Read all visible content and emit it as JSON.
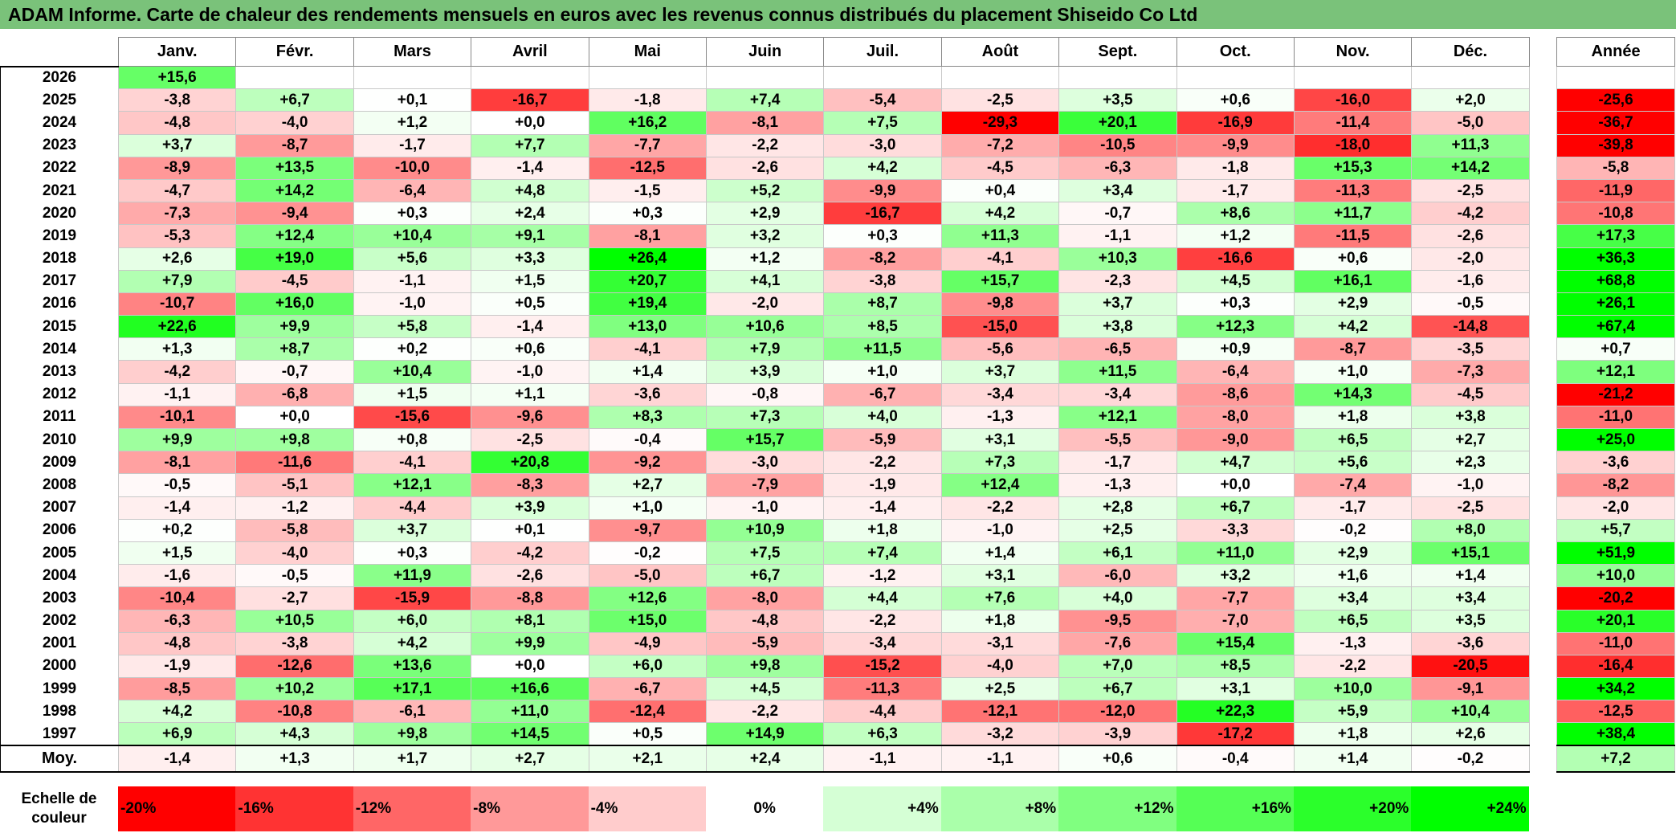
{
  "title": "ADAM Informe. Carte de chaleur des rendements mensuels en euros avec les revenus connus distribués du placement Shiseido Co Ltd",
  "chart_data": {
    "type": "heatmap",
    "title": "ADAM Informe. Carte de chaleur des rendements mensuels en euros avec les revenus connus distribués du placement Shiseido Co Ltd",
    "columns": [
      "Janv.",
      "Févr.",
      "Mars",
      "Avril",
      "Mai",
      "Juin",
      "Juil.",
      "Août",
      "Sept.",
      "Oct.",
      "Nov.",
      "Déc."
    ],
    "annual_header": "Année",
    "rows": [
      {
        "year": "2026",
        "values": [
          "+15,6",
          "",
          "",
          "",
          "",
          "",
          "",
          "",
          "",
          "",
          "",
          ""
        ],
        "annual": ""
      },
      {
        "year": "2025",
        "values": [
          "-3,8",
          "+6,7",
          "+0,1",
          "-16,7",
          "-1,8",
          "+7,4",
          "-5,4",
          "-2,5",
          "+3,5",
          "+0,6",
          "-16,0",
          "+2,0"
        ],
        "annual": "-25,6"
      },
      {
        "year": "2024",
        "values": [
          "-4,8",
          "-4,0",
          "+1,2",
          "+0,0",
          "+16,2",
          "-8,1",
          "+7,5",
          "-29,3",
          "+20,1",
          "-16,9",
          "-11,4",
          "-5,0"
        ],
        "annual": "-36,7"
      },
      {
        "year": "2023",
        "values": [
          "+3,7",
          "-8,7",
          "-1,7",
          "+7,7",
          "-7,7",
          "-2,2",
          "-3,0",
          "-7,2",
          "-10,5",
          "-9,9",
          "-18,0",
          "+11,3"
        ],
        "annual": "-39,8"
      },
      {
        "year": "2022",
        "values": [
          "-8,9",
          "+13,5",
          "-10,0",
          "-1,4",
          "-12,5",
          "-2,6",
          "+4,2",
          "-4,5",
          "-6,3",
          "-1,8",
          "+15,3",
          "+14,2"
        ],
        "annual": "-5,8"
      },
      {
        "year": "2021",
        "values": [
          "-4,7",
          "+14,2",
          "-6,4",
          "+4,8",
          "-1,5",
          "+5,2",
          "-9,9",
          "+0,4",
          "+3,4",
          "-1,7",
          "-11,3",
          "-2,5"
        ],
        "annual": "-11,9"
      },
      {
        "year": "2020",
        "values": [
          "-7,3",
          "-9,4",
          "+0,3",
          "+2,4",
          "+0,3",
          "+2,9",
          "-16,7",
          "+4,2",
          "-0,7",
          "+8,6",
          "+11,7",
          "-4,2"
        ],
        "annual": "-10,8"
      },
      {
        "year": "2019",
        "values": [
          "-5,3",
          "+12,4",
          "+10,4",
          "+9,1",
          "-8,1",
          "+3,2",
          "+0,3",
          "+11,3",
          "-1,1",
          "+1,2",
          "-11,5",
          "-2,6"
        ],
        "annual": "+17,3"
      },
      {
        "year": "2018",
        "values": [
          "+2,6",
          "+19,0",
          "+5,6",
          "+3,3",
          "+26,4",
          "+1,2",
          "-8,2",
          "-4,1",
          "+10,3",
          "-16,6",
          "+0,6",
          "-2,0"
        ],
        "annual": "+36,3"
      },
      {
        "year": "2017",
        "values": [
          "+7,9",
          "-4,5",
          "-1,1",
          "+1,5",
          "+20,7",
          "+4,1",
          "-3,8",
          "+15,7",
          "-2,3",
          "+4,5",
          "+16,1",
          "-1,6"
        ],
        "annual": "+68,8"
      },
      {
        "year": "2016",
        "values": [
          "-10,7",
          "+16,0",
          "-1,0",
          "+0,5",
          "+19,4",
          "-2,0",
          "+8,7",
          "-9,8",
          "+3,7",
          "+0,3",
          "+2,9",
          "-0,5"
        ],
        "annual": "+26,1"
      },
      {
        "year": "2015",
        "values": [
          "+22,6",
          "+9,9",
          "+5,8",
          "-1,4",
          "+13,0",
          "+10,6",
          "+8,5",
          "-15,0",
          "+3,8",
          "+12,3",
          "+4,2",
          "-14,8"
        ],
        "annual": "+67,4"
      },
      {
        "year": "2014",
        "values": [
          "+1,3",
          "+8,7",
          "+0,2",
          "+0,6",
          "-4,1",
          "+7,9",
          "+11,5",
          "-5,6",
          "-6,5",
          "+0,9",
          "-8,7",
          "-3,5"
        ],
        "annual": "+0,7"
      },
      {
        "year": "2013",
        "values": [
          "-4,2",
          "-0,7",
          "+10,4",
          "-1,0",
          "+1,4",
          "+3,9",
          "+1,0",
          "+3,7",
          "+11,5",
          "-6,4",
          "+1,0",
          "-7,3"
        ],
        "annual": "+12,1"
      },
      {
        "year": "2012",
        "values": [
          "-1,1",
          "-6,8",
          "+1,5",
          "+1,1",
          "-3,6",
          "-0,8",
          "-6,7",
          "-3,4",
          "-3,4",
          "-8,6",
          "+14,3",
          "-4,5"
        ],
        "annual": "-21,2"
      },
      {
        "year": "2011",
        "values": [
          "-10,1",
          "+0,0",
          "-15,6",
          "-9,6",
          "+8,3",
          "+7,3",
          "+4,0",
          "-1,3",
          "+12,1",
          "-8,0",
          "+1,8",
          "+3,8"
        ],
        "annual": "-11,0"
      },
      {
        "year": "2010",
        "values": [
          "+9,9",
          "+9,8",
          "+0,8",
          "-2,5",
          "-0,4",
          "+15,7",
          "-5,9",
          "+3,1",
          "-5,5",
          "-9,0",
          "+6,5",
          "+2,7"
        ],
        "annual": "+25,0"
      },
      {
        "year": "2009",
        "values": [
          "-8,1",
          "-11,6",
          "-4,1",
          "+20,8",
          "-9,2",
          "-3,0",
          "-2,2",
          "+7,3",
          "-1,7",
          "+4,7",
          "+5,6",
          "+2,3"
        ],
        "annual": "-3,6"
      },
      {
        "year": "2008",
        "values": [
          "-0,5",
          "-5,1",
          "+12,1",
          "-8,3",
          "+2,7",
          "-7,9",
          "-1,9",
          "+12,4",
          "-1,3",
          "+0,0",
          "-7,4",
          "-1,0"
        ],
        "annual": "-8,2"
      },
      {
        "year": "2007",
        "values": [
          "-1,4",
          "-1,2",
          "-4,4",
          "+3,9",
          "+1,0",
          "-1,0",
          "-1,4",
          "-2,2",
          "+2,8",
          "+6,7",
          "-1,7",
          "-2,5"
        ],
        "annual": "-2,0"
      },
      {
        "year": "2006",
        "values": [
          "+0,2",
          "-5,8",
          "+3,7",
          "+0,1",
          "-9,7",
          "+10,9",
          "+1,8",
          "-1,0",
          "+2,5",
          "-3,3",
          "-0,2",
          "+8,0"
        ],
        "annual": "+5,7"
      },
      {
        "year": "2005",
        "values": [
          "+1,5",
          "-4,0",
          "+0,3",
          "-4,2",
          "-0,2",
          "+7,5",
          "+7,4",
          "+1,4",
          "+6,1",
          "+11,0",
          "+2,9",
          "+15,1"
        ],
        "annual": "+51,9"
      },
      {
        "year": "2004",
        "values": [
          "-1,6",
          "-0,5",
          "+11,9",
          "-2,6",
          "-5,0",
          "+6,7",
          "-1,2",
          "+3,1",
          "-6,0",
          "+3,2",
          "+1,6",
          "+1,4"
        ],
        "annual": "+10,0"
      },
      {
        "year": "2003",
        "values": [
          "-10,4",
          "-2,7",
          "-15,9",
          "-8,8",
          "+12,6",
          "-8,0",
          "+4,4",
          "+7,6",
          "+4,0",
          "-7,7",
          "+3,4",
          "+3,4"
        ],
        "annual": "-20,2"
      },
      {
        "year": "2002",
        "values": [
          "-6,3",
          "+10,5",
          "+6,0",
          "+8,1",
          "+15,0",
          "-4,8",
          "-2,2",
          "+1,8",
          "-9,5",
          "-7,0",
          "+6,5",
          "+3,5"
        ],
        "annual": "+20,1"
      },
      {
        "year": "2001",
        "values": [
          "-4,8",
          "-3,8",
          "+4,2",
          "+9,9",
          "-4,9",
          "-5,9",
          "-3,4",
          "-3,1",
          "-7,6",
          "+15,4",
          "-1,3",
          "-3,6"
        ],
        "annual": "-11,0"
      },
      {
        "year": "2000",
        "values": [
          "-1,9",
          "-12,6",
          "+13,6",
          "+0,0",
          "+6,0",
          "+9,8",
          "-15,2",
          "-4,0",
          "+7,0",
          "+8,5",
          "-2,2",
          "-20,5"
        ],
        "annual": "-16,4"
      },
      {
        "year": "1999",
        "values": [
          "-8,5",
          "+10,2",
          "+17,1",
          "+16,6",
          "-6,7",
          "+4,5",
          "-11,3",
          "+2,5",
          "+6,7",
          "+3,1",
          "+10,0",
          "-9,1"
        ],
        "annual": "+34,2"
      },
      {
        "year": "1998",
        "values": [
          "+4,2",
          "-10,8",
          "-6,1",
          "+11,0",
          "-12,4",
          "-2,2",
          "-4,4",
          "-12,1",
          "-12,0",
          "+22,3",
          "+5,9",
          "+10,4"
        ],
        "annual": "-12,5"
      },
      {
        "year": "1997",
        "values": [
          "+6,9",
          "+4,3",
          "+9,8",
          "+14,5",
          "+0,5",
          "+14,9",
          "+6,3",
          "-3,2",
          "-3,9",
          "-17,2",
          "+1,8",
          "+2,6"
        ],
        "annual": "+38,4"
      }
    ],
    "average": {
      "label": "Moy.",
      "values": [
        "-1,4",
        "+1,3",
        "+1,7",
        "+2,7",
        "+2,1",
        "+2,4",
        "-1,1",
        "-1,1",
        "+0,6",
        "-0,4",
        "+1,4",
        "-0,2"
      ],
      "annual": "+7,2"
    },
    "legend": {
      "label": "Echelle de couleur",
      "steps": [
        {
          "text": "-20%",
          "value": -20
        },
        {
          "text": "-16%",
          "value": -16
        },
        {
          "text": "-12%",
          "value": -12
        },
        {
          "text": "-8%",
          "value": -8
        },
        {
          "text": "-4%",
          "value": -4
        },
        {
          "text": "0%",
          "value": 0
        },
        {
          "text": "+4%",
          "value": 4
        },
        {
          "text": "+8%",
          "value": 8
        },
        {
          "text": "+12%",
          "value": 12
        },
        {
          "text": "+16%",
          "value": 16
        },
        {
          "text": "+20%",
          "value": 20
        },
        {
          "text": "+24%",
          "value": 24
        }
      ]
    },
    "colors": {
      "negative": "#ff0000",
      "neutral": "#ffffff",
      "positive": "#00ff00",
      "title_bar": "#7ac27a"
    }
  }
}
